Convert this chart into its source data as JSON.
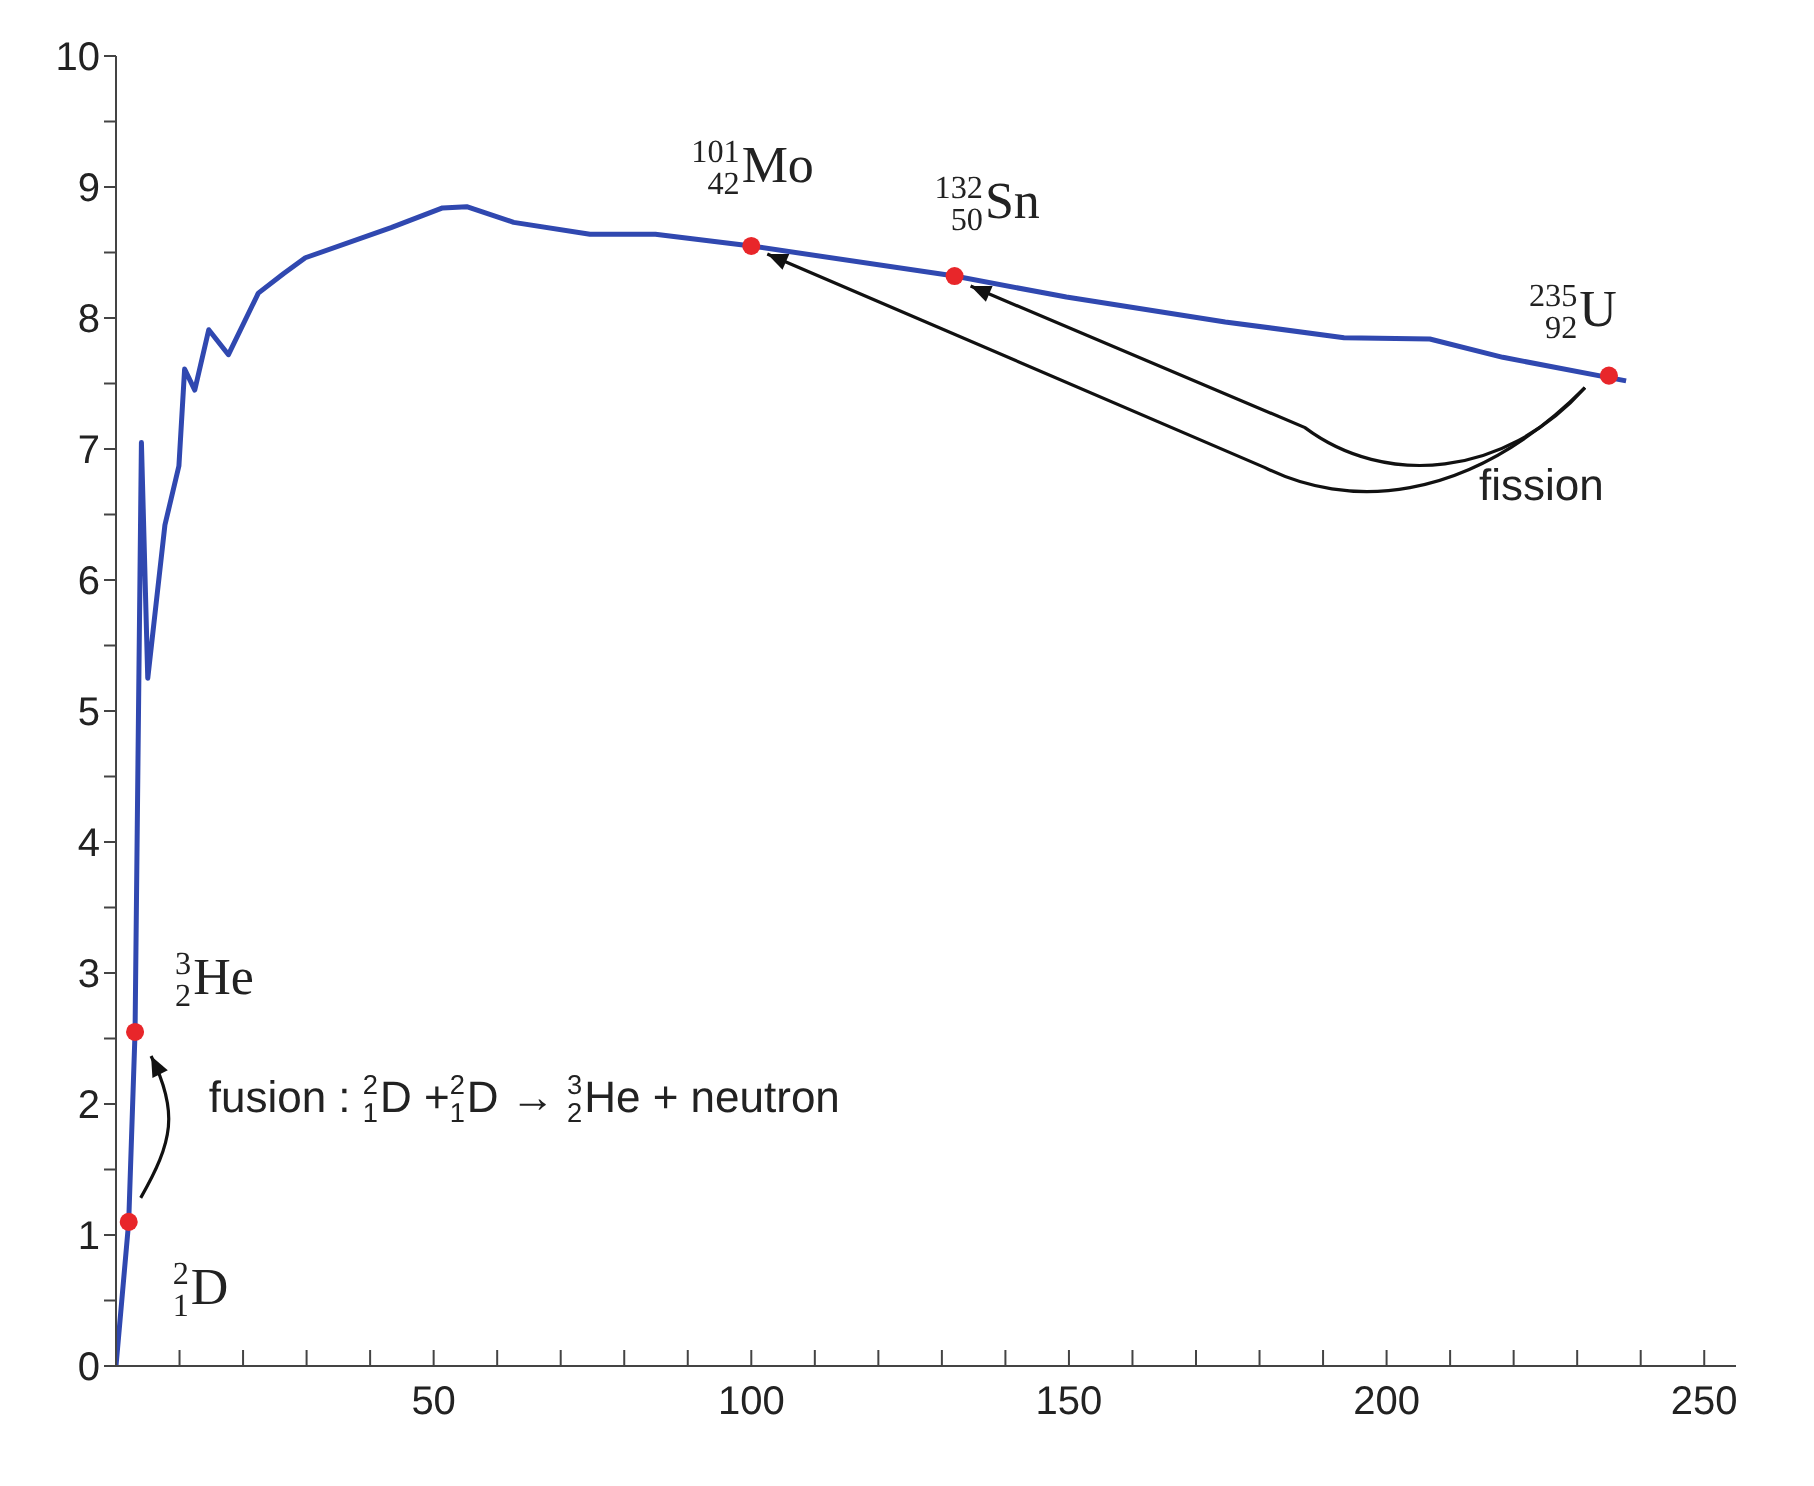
{
  "chart_data": {
    "type": "line",
    "xlim": [
      0,
      255
    ],
    "ylim": [
      0,
      10
    ],
    "xticks": [
      {
        "value": 0,
        "label": null
      },
      {
        "value": 10,
        "label": null
      },
      {
        "value": 20,
        "label": null
      },
      {
        "value": 30,
        "label": null
      },
      {
        "value": 40,
        "label": null
      },
      50,
      {
        "value": 60,
        "label": null
      },
      {
        "value": 70,
        "label": null
      },
      {
        "value": 80,
        "label": null
      },
      {
        "value": 90,
        "label": null
      },
      100,
      {
        "value": 110,
        "label": null
      },
      {
        "value": 120,
        "label": null
      },
      {
        "value": 130,
        "label": null
      },
      {
        "value": 140,
        "label": null
      },
      150,
      {
        "value": 160,
        "label": null
      },
      {
        "value": 170,
        "label": null
      },
      {
        "value": 180,
        "label": null
      },
      {
        "value": 190,
        "label": null
      },
      200,
      {
        "value": 210,
        "label": null
      },
      {
        "value": 220,
        "label": null
      },
      {
        "value": 230,
        "label": null
      },
      {
        "value": 240,
        "label": null
      },
      250
    ],
    "yticks": [
      0,
      {
        "value": 0.5,
        "label": null
      },
      1,
      {
        "value": 1.5,
        "label": null
      },
      2,
      {
        "value": 2.5,
        "label": null
      },
      3,
      {
        "value": 3.5,
        "label": null
      },
      4,
      {
        "value": 4.5,
        "label": null
      },
      5,
      {
        "value": 5.5,
        "label": null
      },
      6,
      {
        "value": 6.5,
        "label": null
      },
      7,
      {
        "value": 7.5,
        "label": null
      },
      8,
      {
        "value": 8.5,
        "label": null
      },
      9,
      {
        "value": 9.5,
        "label": null
      },
      10
    ],
    "grid": false,
    "series": [
      {
        "color": "#3048b0",
        "marker": "none",
        "line_style": "solid",
        "x": [
          0,
          2,
          3,
          4,
          5,
          7.7,
          9.9,
          10.8,
          12.4,
          14.6,
          17.7,
          22.4,
          26.4,
          29.8,
          43.3,
          51.4,
          55.2,
          62.6,
          74.6,
          84.9,
          100,
          132,
          149.6,
          174.6,
          193.3,
          206.8,
          218.3,
          237.7
        ],
        "values": [
          0,
          1.1,
          2.55,
          7.05,
          5.25,
          6.42,
          6.87,
          7.61,
          7.45,
          7.91,
          7.72,
          8.19,
          8.34,
          8.46,
          8.69,
          8.84,
          8.85,
          8.73,
          8.64,
          8.64,
          8.55,
          8.32,
          8.16,
          7.97,
          7.85,
          7.84,
          7.7,
          7.52
        ]
      },
      {
        "type": "scatter",
        "color": "#e8262a",
        "marker": "circle",
        "x": [
          2,
          3,
          100,
          132,
          235
        ],
        "values": [
          1.1,
          2.55,
          8.55,
          8.32,
          7.56
        ]
      }
    ],
    "annotations": [
      {
        "text": "$^{2}$$_{1}$D",
        "x": 2,
        "y": 1.1
      },
      {
        "text": "$^{3}$$_{2}$He",
        "x": 3,
        "y": 2.55
      },
      {
        "text": "$^{101}$$_{42}$Mo",
        "x": 100,
        "y": 8.55
      },
      {
        "text": "$^{132}$$_{50}$Sn",
        "x": 132,
        "y": 8.32
      },
      {
        "text": "$^{235}$$_{92}$U",
        "x": 235,
        "y": 7.56
      },
      "fusion : $^{2}$$_{1}$D +$^{2}$$_{1}$D → $^{3}$$_{2}$He + neutron",
      "fission"
    ]
  }
}
